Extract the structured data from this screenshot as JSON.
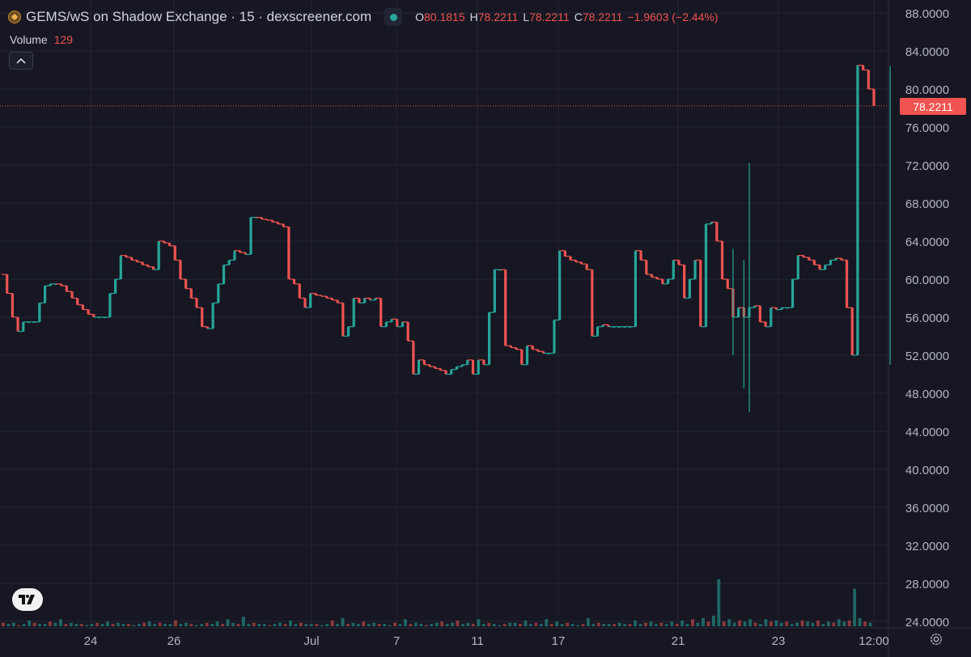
{
  "header": {
    "title": "GEMS/wS on Shadow Exchange · 15 · dexscreener.com",
    "ohlc": [
      {
        "key": "O",
        "value": "80.1815"
      },
      {
        "key": "H",
        "value": "78.2211"
      },
      {
        "key": "L",
        "value": "78.2211"
      },
      {
        "key": "C",
        "value": "78.2211"
      }
    ],
    "change": "−1.9603 (−2.44%)",
    "volume_label": "Volume",
    "volume_value": "129",
    "collapse_icon": "chevron-up-icon"
  },
  "price_tag": "78.2211",
  "colors": {
    "up": "#26a69a",
    "down": "#ef5350",
    "background": "#161722",
    "grid": "#232632"
  },
  "chart_data": {
    "type": "candlestick",
    "title": "GEMS/wS on Shadow Exchange · 15 · dexscreener.com",
    "interval": "15",
    "ylim": [
      23.5,
      88.5
    ],
    "y_ticks": [
      "88.0000",
      "84.0000",
      "80.0000",
      "76.0000",
      "72.0000",
      "68.0000",
      "64.0000",
      "60.0000",
      "56.0000",
      "52.0000",
      "48.0000",
      "44.0000",
      "40.0000",
      "36.0000",
      "32.0000",
      "28.0000",
      "24.0000"
    ],
    "x_ticks": [
      "24",
      "26",
      "Jul",
      "7",
      "11",
      "17",
      "21",
      "23",
      "12:00"
    ],
    "last_price": 78.2211,
    "grid": true,
    "path": [
      [
        60.5,
        58.5,
        56.0,
        54.5,
        55.5,
        55.5,
        55.5,
        57.5,
        59.3,
        59.5,
        59.5,
        59.3,
        58.7,
        58.0,
        57.3,
        56.8,
        56.3,
        56.0,
        56.0,
        56.0,
        58.5,
        60.0,
        62.5,
        62.3,
        62.0,
        61.8,
        61.5,
        61.3,
        61.0,
        64.0,
        63.8,
        63.5,
        62.0,
        60.0,
        59.0,
        58.0,
        57.0,
        55.0,
        54.8,
        57.5,
        59.5,
        61.5,
        62.0,
        63.0,
        62.8,
        62.6,
        66.5,
        66.5,
        66.3,
        66.2,
        66.0,
        65.8,
        65.5,
        60.0,
        59.5,
        58.0,
        57.0,
        58.5,
        58.3,
        58.2,
        58.0,
        57.8,
        57.5,
        54.0,
        55.0,
        58.0,
        57.5,
        58.0,
        57.8,
        58.0,
        55.0,
        55.5,
        55.8,
        55.0,
        55.5,
        53.5,
        50.0,
        51.5,
        51.0,
        50.8,
        50.6,
        50.4,
        50.0,
        50.5,
        50.8,
        51.0,
        51.5,
        50.0,
        51.5,
        51.0,
        56.5,
        61.0,
        61.0,
        53.0,
        52.8,
        52.6,
        51.0,
        53.0,
        52.6,
        52.4,
        52.2,
        52.2,
        55.7,
        63.0,
        62.4,
        62.0,
        61.8,
        61.6,
        61.0,
        54.0,
        55.0,
        55.2,
        55.0,
        55.0,
        55.0,
        55.0,
        55.0,
        63.0,
        62.0,
        60.5,
        60.2,
        60.0,
        59.5,
        60.0,
        62.0,
        61.5,
        58.0,
        60.0,
        62.0,
        55.0,
        65.8,
        66.0,
        64.0,
        60.0,
        59.0,
        56.0,
        57.0,
        56.0,
        57.0,
        57.2,
        55.5,
        55.0,
        57.0,
        56.8,
        57.0,
        57.0,
        60.0,
        62.5,
        62.3,
        62.0,
        61.5,
        61.0,
        61.5,
        62.0,
        62.2,
        62.0,
        57.0,
        52.0,
        82.5,
        82.0,
        80.0,
        78.22
      ],
      [
        60.5,
        58.5,
        56.0,
        54.5,
        55.5,
        55.5,
        55.5,
        57.5,
        59.3,
        59.5,
        59.5,
        59.3,
        58.7,
        58.0,
        57.3,
        56.8,
        56.3,
        56.0,
        56.0,
        56.0,
        58.5,
        60.0,
        62.5,
        62.3,
        62.0,
        61.8,
        61.5,
        61.3,
        61.0,
        64.0,
        63.8,
        63.5,
        62.0,
        60.0,
        59.0,
        58.0,
        57.0,
        55.0,
        54.8,
        57.5,
        59.5,
        61.5,
        62.0,
        63.0,
        62.8,
        62.6,
        66.5,
        66.5,
        66.3,
        66.2,
        66.0,
        65.8,
        65.5,
        60.0,
        59.5,
        58.0,
        57.0,
        58.5,
        58.3,
        58.2,
        58.0,
        57.8,
        57.5,
        54.0,
        55.0,
        58.0,
        57.5,
        58.0,
        57.8,
        58.0,
        55.0,
        55.5,
        55.8,
        55.0,
        55.5,
        53.5,
        50.0,
        51.5,
        51.0,
        50.8,
        50.6,
        50.4,
        50.0,
        50.5,
        50.8,
        51.0,
        51.5,
        50.0,
        51.5,
        51.0,
        56.5,
        61.0,
        61.0,
        53.0,
        52.8,
        52.6,
        51.0,
        53.0,
        52.6,
        52.4,
        52.2,
        52.2,
        55.7,
        63.0,
        62.4,
        62.0,
        61.8,
        61.6,
        61.0,
        54.0,
        55.0,
        55.2,
        55.0,
        55.0,
        55.0,
        55.0,
        55.0,
        63.0,
        62.0,
        60.5,
        60.2,
        60.0,
        59.5,
        60.0,
        62.0,
        61.5,
        58.0,
        60.0,
        62.0,
        55.0,
        65.8,
        66.0,
        64.0,
        60.0,
        59.0,
        56.0,
        57.0,
        56.0,
        57.0,
        57.2,
        55.5,
        55.0,
        57.0,
        56.8,
        57.0,
        57.0,
        60.0,
        62.5,
        62.3,
        62.0,
        61.5,
        61.0,
        61.5,
        62.0,
        62.2,
        62.0,
        57.0,
        52.0,
        82.5,
        82.0,
        80.0,
        78.22
      ]
    ],
    "wicks": [
      {
        "index": 138,
        "high": 72.2,
        "low": 46.0
      },
      {
        "index": 137,
        "high": 62.0,
        "low": 48.5
      },
      {
        "index": 135,
        "high": 63.2,
        "low": 52.0
      },
      {
        "index": 164,
        "high": 82.4,
        "low": 51.0
      }
    ],
    "volume": [
      3,
      2,
      3,
      1,
      2,
      5,
      3,
      2,
      2,
      4,
      3,
      6,
      2,
      3,
      2,
      2,
      1,
      2,
      3,
      2,
      4,
      2,
      3,
      2,
      2,
      1,
      2,
      3,
      4,
      2,
      3,
      2,
      2,
      5,
      2,
      3,
      2,
      1,
      2,
      3,
      2,
      4,
      2,
      6,
      3,
      2,
      8,
      2,
      3,
      2,
      2,
      1,
      2,
      3,
      2,
      5,
      2,
      3,
      2,
      2,
      2,
      1,
      2,
      5,
      2,
      7,
      2,
      3,
      2,
      4,
      2,
      3,
      2,
      2,
      1,
      3,
      2,
      6,
      2,
      3,
      2,
      1,
      2,
      3,
      4,
      2,
      3,
      5,
      2,
      3,
      2,
      6,
      2,
      3,
      2,
      1,
      2,
      3,
      3,
      2,
      5,
      2,
      3,
      2,
      6,
      2,
      4,
      2,
      3,
      2,
      1,
      2,
      7,
      2,
      3,
      2,
      2,
      2,
      3,
      2,
      2,
      5,
      2,
      3,
      4,
      2,
      3,
      2,
      4,
      2,
      5,
      2,
      6,
      3,
      7,
      4,
      9,
      40,
      4,
      6,
      3,
      5,
      4,
      6,
      3,
      2,
      6,
      4,
      5,
      3,
      4,
      2,
      3,
      5,
      4,
      3,
      5,
      2,
      4,
      3,
      6,
      4,
      5,
      32,
      7,
      4,
      3
    ],
    "series": [
      {
        "values": [
          80.1815,
          78.2211,
          78.2211,
          78.2211
        ]
      }
    ]
  }
}
